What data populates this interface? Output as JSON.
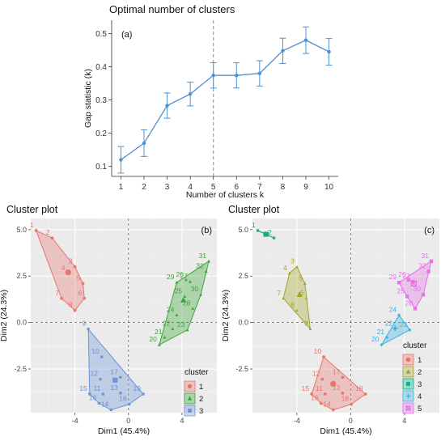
{
  "chart_data": [
    {
      "type": "line",
      "title": "Optimal number of clusters",
      "panel_tag": "(a)",
      "xlabel": "Number of clusters k",
      "ylabel": "Gap statistic (k)",
      "x": [
        1,
        2,
        3,
        4,
        5,
        6,
        7,
        8,
        9,
        10
      ],
      "y": [
        0.12,
        0.17,
        0.283,
        0.318,
        0.374,
        0.374,
        0.38,
        0.448,
        0.48,
        0.445
      ],
      "y_err": [
        0.04,
        0.04,
        0.038,
        0.036,
        0.038,
        0.038,
        0.038,
        0.038,
        0.04,
        0.04
      ],
      "xlim": [
        0.6,
        10.4
      ],
      "ylim": [
        0.07,
        0.54
      ],
      "yticks": [
        0.1,
        0.2,
        0.3,
        0.4,
        0.5
      ],
      "yticklabels": [
        "0.1",
        "0.2",
        "0.3",
        "0.4",
        "0.5"
      ],
      "xticks": [
        1,
        2,
        3,
        4,
        5,
        6,
        7,
        8,
        9,
        10
      ],
      "xticklabels": [
        "1",
        "2",
        "3",
        "4",
        "5",
        "6",
        "7",
        "8",
        "9",
        "10"
      ],
      "optimal_k": 5,
      "grid": false,
      "color": "#4f90d0"
    },
    {
      "type": "scatter",
      "title": "Cluster plot",
      "panel_tag": "(b)",
      "xlabel": "Dim1 (45.4%)",
      "ylabel": "Dim2 (24.3%)",
      "xlim": [
        -7.3,
        6.6
      ],
      "ylim": [
        -4.85,
        5.6
      ],
      "xticks": [
        -4,
        0,
        4
      ],
      "xticklabels": [
        "-4",
        "0",
        "4"
      ],
      "yticks": [
        -2.5,
        0.0,
        2.5,
        5.0
      ],
      "yticklabels": [
        "-2.5",
        "0.0",
        "2.5",
        "5.0"
      ],
      "grid": true,
      "legend": {
        "title": "cluster",
        "position": "right-bottom",
        "labels": [
          "1",
          "2",
          "3"
        ]
      },
      "points": [
        {
          "id": "1",
          "x": -6.9,
          "y": 4.95,
          "cluster": 1
        },
        {
          "id": "2",
          "x": -5.7,
          "y": 4.55,
          "cluster": 1
        },
        {
          "id": "3",
          "x": -4.0,
          "y": 3.0,
          "cluster": 1
        },
        {
          "id": "4",
          "x": -4.55,
          "y": 2.65,
          "cluster": 1
        },
        {
          "id": "5",
          "x": -3.4,
          "y": 2.1,
          "cluster": 1
        },
        {
          "id": "6",
          "x": -3.3,
          "y": 1.3,
          "cluster": 1
        },
        {
          "id": "7",
          "x": -5.0,
          "y": 1.3,
          "cluster": 1
        },
        {
          "id": "8",
          "x": -4.0,
          "y": 0.65,
          "cluster": 1
        },
        {
          "id": "9",
          "x": -3.0,
          "y": -0.35,
          "cluster": 3
        },
        {
          "id": "10",
          "x": -2.0,
          "y": -1.85,
          "cluster": 3
        },
        {
          "id": "11",
          "x": -1.9,
          "y": -3.85,
          "cluster": 3
        },
        {
          "id": "12",
          "x": -2.1,
          "y": -3.05,
          "cluster": 3
        },
        {
          "id": "13",
          "x": -0.6,
          "y": -3.8,
          "cluster": 3
        },
        {
          "id": "14",
          "x": -1.3,
          "y": -4.7,
          "cluster": 3
        },
        {
          "id": "15",
          "x": -2.9,
          "y": -3.85,
          "cluster": 3
        },
        {
          "id": "16",
          "x": -2.2,
          "y": -4.35,
          "cluster": 3
        },
        {
          "id": "17",
          "x": -0.6,
          "y": -2.95,
          "cluster": 3
        },
        {
          "id": "18",
          "x": 0.05,
          "y": -4.4,
          "cluster": 3
        },
        {
          "id": "19",
          "x": 1.1,
          "y": -3.85,
          "cluster": 3
        },
        {
          "id": "20",
          "x": 2.3,
          "y": -1.2,
          "cluster": 2
        },
        {
          "id": "21",
          "x": 2.7,
          "y": -0.8,
          "cluster": 2
        },
        {
          "id": "22",
          "x": 3.3,
          "y": -0.35,
          "cluster": 2
        },
        {
          "id": "23",
          "x": 4.4,
          "y": -0.4,
          "cluster": 2
        },
        {
          "id": "24",
          "x": 3.6,
          "y": 0.4,
          "cluster": 2
        },
        {
          "id": "25",
          "x": 4.2,
          "y": 1.4,
          "cluster": 2
        },
        {
          "id": "26",
          "x": 4.3,
          "y": 2.3,
          "cluster": 2
        },
        {
          "id": "27",
          "x": 4.6,
          "y": 2.2,
          "cluster": 2
        },
        {
          "id": "28",
          "x": 4.8,
          "y": 0.75,
          "cluster": 2
        },
        {
          "id": "29",
          "x": 3.6,
          "y": 2.15,
          "cluster": 2
        },
        {
          "id": "30",
          "x": 5.4,
          "y": 1.5,
          "cluster": 2
        },
        {
          "id": "31",
          "x": 6.0,
          "y": 3.3,
          "cluster": 2
        },
        {
          "id": "32",
          "x": 5.8,
          "y": 2.75,
          "cluster": 2
        }
      ],
      "centroids": [
        {
          "cluster": 1,
          "x": -4.5,
          "y": 2.7
        },
        {
          "cluster": 2,
          "x": 4.1,
          "y": 1.2
        },
        {
          "cluster": 3,
          "x": -1.0,
          "y": -3.1
        }
      ],
      "colors": [
        "#e8756f",
        "#3aa63a",
        "#6b93d6"
      ]
    },
    {
      "type": "scatter",
      "title": "Cluster plot",
      "panel_tag": "(c)",
      "xlabel": "Dim1 (45.4%)",
      "ylabel": "Dim2 (24.3%)",
      "xlim": [
        -7.3,
        6.6
      ],
      "ylim": [
        -4.85,
        5.6
      ],
      "xticks": [
        -4,
        0,
        4
      ],
      "xticklabels": [
        "-4",
        "0",
        "4"
      ],
      "yticks": [
        -2.5,
        0.0,
        2.5,
        5.0
      ],
      "yticklabels": [
        "-2.5",
        "0.0",
        "2.5",
        "5.0"
      ],
      "grid": true,
      "legend": {
        "title": "cluster",
        "position": "right-bottom",
        "labels": [
          "1",
          "2",
          "3",
          "4",
          "5"
        ]
      },
      "points": [
        {
          "id": "1",
          "x": -6.9,
          "y": 4.95,
          "cluster": 3
        },
        {
          "id": "2",
          "x": -5.7,
          "y": 4.55,
          "cluster": 3
        },
        {
          "id": "3",
          "x": -4.0,
          "y": 3.0,
          "cluster": 2
        },
        {
          "id": "4",
          "x": -4.55,
          "y": 2.65,
          "cluster": 2
        },
        {
          "id": "5",
          "x": -3.4,
          "y": 2.1,
          "cluster": 2
        },
        {
          "id": "6",
          "x": -3.3,
          "y": 1.3,
          "cluster": 2
        },
        {
          "id": "7",
          "x": -5.0,
          "y": 1.3,
          "cluster": 2
        },
        {
          "id": "8",
          "x": -4.0,
          "y": 0.65,
          "cluster": 2
        },
        {
          "id": "9",
          "x": -3.0,
          "y": -0.35,
          "cluster": 2
        },
        {
          "id": "10",
          "x": -2.0,
          "y": -1.85,
          "cluster": 1
        },
        {
          "id": "11",
          "x": -1.9,
          "y": -3.85,
          "cluster": 1
        },
        {
          "id": "12",
          "x": -2.1,
          "y": -3.05,
          "cluster": 1
        },
        {
          "id": "13",
          "x": -0.6,
          "y": -3.8,
          "cluster": 1
        },
        {
          "id": "14",
          "x": -1.3,
          "y": -4.7,
          "cluster": 1
        },
        {
          "id": "15",
          "x": -2.9,
          "y": -3.85,
          "cluster": 1
        },
        {
          "id": "16",
          "x": -2.2,
          "y": -4.35,
          "cluster": 1
        },
        {
          "id": "17",
          "x": -0.6,
          "y": -2.95,
          "cluster": 1
        },
        {
          "id": "18",
          "x": 0.05,
          "y": -4.4,
          "cluster": 1
        },
        {
          "id": "19",
          "x": 1.1,
          "y": -3.85,
          "cluster": 1
        },
        {
          "id": "20",
          "x": 2.3,
          "y": -1.2,
          "cluster": 4
        },
        {
          "id": "21",
          "x": 2.7,
          "y": -0.8,
          "cluster": 4
        },
        {
          "id": "22",
          "x": 3.3,
          "y": -0.35,
          "cluster": 4
        },
        {
          "id": "23",
          "x": 4.4,
          "y": -0.4,
          "cluster": 4
        },
        {
          "id": "24",
          "x": 3.6,
          "y": 0.4,
          "cluster": 4
        },
        {
          "id": "25",
          "x": 4.2,
          "y": 1.4,
          "cluster": 5
        },
        {
          "id": "26",
          "x": 4.3,
          "y": 2.3,
          "cluster": 5
        },
        {
          "id": "27",
          "x": 4.6,
          "y": 2.2,
          "cluster": 5
        },
        {
          "id": "28",
          "x": 4.8,
          "y": 0.75,
          "cluster": 5
        },
        {
          "id": "29",
          "x": 3.6,
          "y": 2.15,
          "cluster": 5
        },
        {
          "id": "30",
          "x": 5.4,
          "y": 1.5,
          "cluster": 5
        },
        {
          "id": "31",
          "x": 6.0,
          "y": 3.3,
          "cluster": 5
        },
        {
          "id": "32",
          "x": 5.8,
          "y": 2.75,
          "cluster": 5
        }
      ],
      "centroids": [
        {
          "cluster": 1,
          "x": -1.3,
          "y": -3.3
        },
        {
          "cluster": 2,
          "x": -3.8,
          "y": 1.5
        },
        {
          "cluster": 3,
          "x": -6.3,
          "y": 4.75
        },
        {
          "cluster": 4,
          "x": 3.3,
          "y": -0.3
        },
        {
          "cluster": 5,
          "x": 4.7,
          "y": 2.1
        }
      ],
      "colors": [
        "#e8756f",
        "#a3a528",
        "#12ad86",
        "#36b3e0",
        "#e36fe6"
      ]
    }
  ]
}
